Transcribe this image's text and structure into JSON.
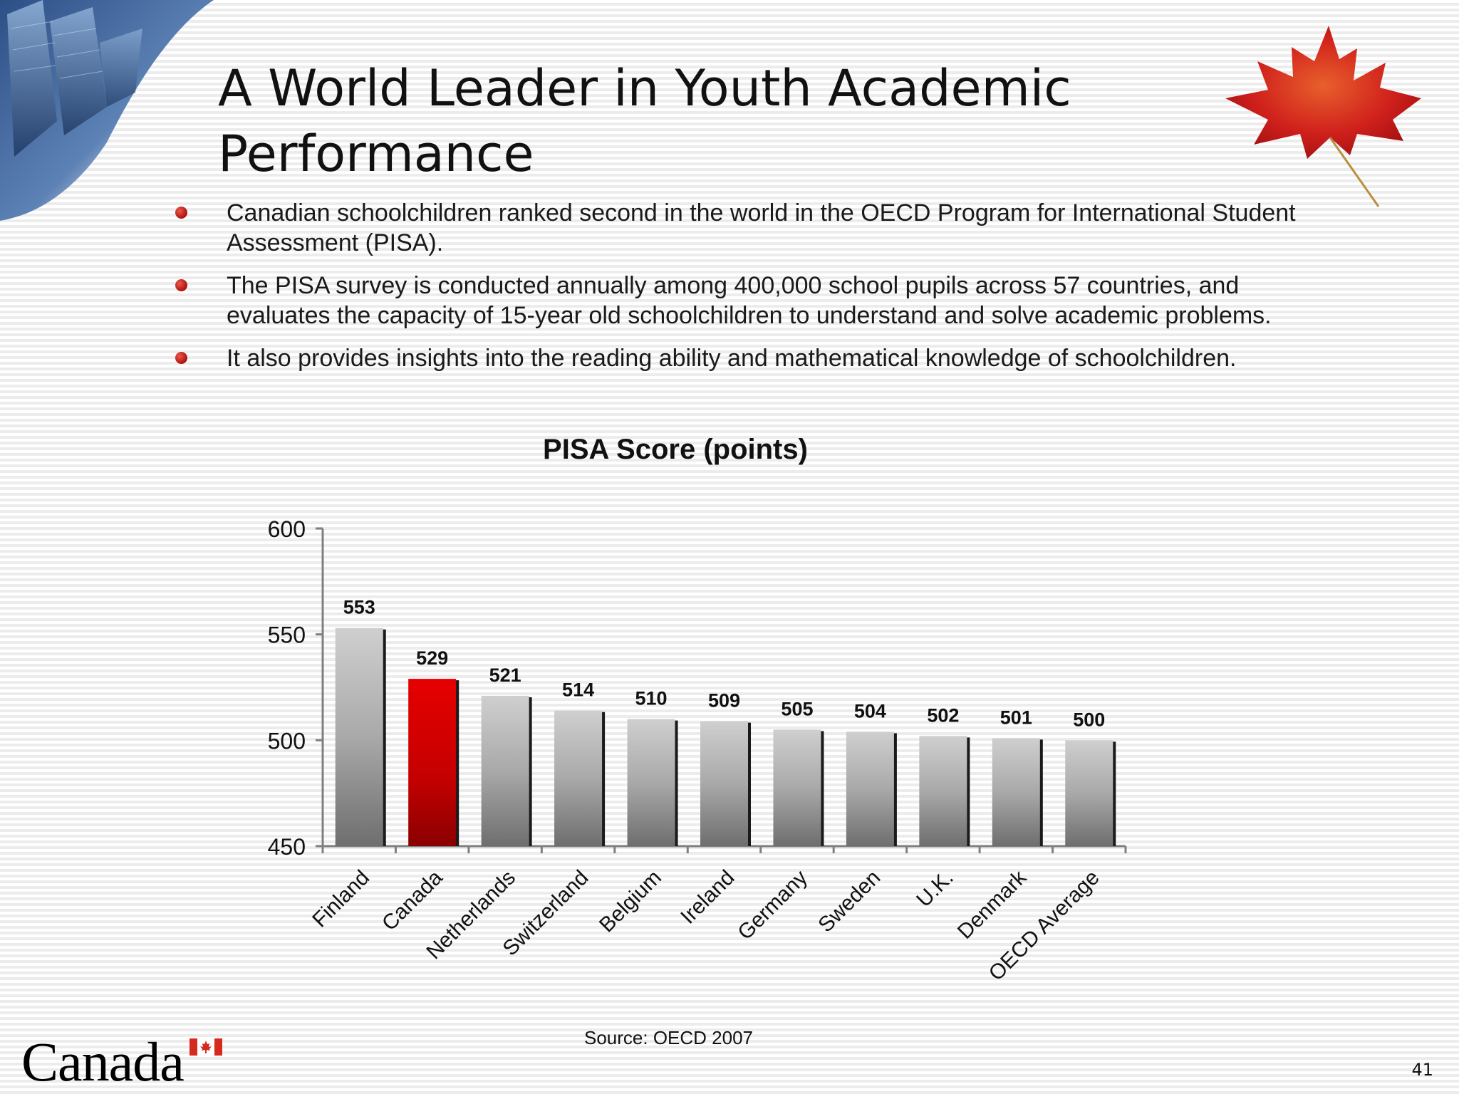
{
  "slide": {
    "title_line1": "A World Leader in Youth Academic",
    "title_line2": "Performance",
    "bullets": [
      "Canadian schoolchildren ranked second in the world in the OECD Program for International Student Assessment (PISA).",
      "The PISA survey is conducted annually among 400,000 school pupils across 57 countries, and evaluates the capacity of 15-year old schoolchildren to understand and solve academic problems.",
      "It also provides insights into the reading ability and mathematical knowledge of schoolchildren."
    ],
    "source": "Source: OECD 2007",
    "page_number": "41",
    "wordmark": "Canada"
  },
  "colors": {
    "highlight_bar": "#cc0000",
    "default_bar": "#a0a0a0",
    "bullet": "#c0151a"
  },
  "chart_data": {
    "type": "bar",
    "title": "PISA Score (points)",
    "categories": [
      "Finland",
      "Canada",
      "Netherlands",
      "Switzerland",
      "Belgium",
      "Ireland",
      "Germany",
      "Sweden",
      "U.K.",
      "Denmark",
      "OECD Average"
    ],
    "values": [
      553,
      529,
      521,
      514,
      510,
      509,
      505,
      504,
      502,
      501,
      500
    ],
    "highlight": "Canada",
    "ylim": [
      450,
      600
    ],
    "yticks": [
      450,
      500,
      550,
      600
    ],
    "xlabel": "",
    "ylabel": "",
    "grid": false,
    "legend": "none"
  }
}
